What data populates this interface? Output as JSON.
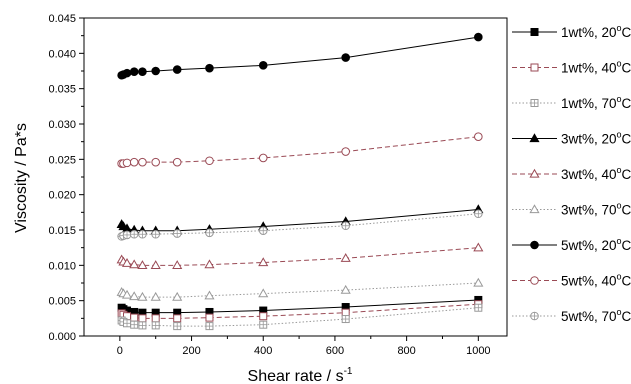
{
  "chart_data": {
    "type": "line",
    "xlabel": "Shear rate / s",
    "xlabel_sup": "-1",
    "ylabel": "Viscosity / Pa*s",
    "xlim": [
      -100,
      1080
    ],
    "ylim": [
      0,
      0.045
    ],
    "x_ticks": [
      0,
      200,
      400,
      600,
      800,
      1000
    ],
    "x_tick_labels": [
      "0",
      "200",
      "400",
      "600",
      "800",
      "1000"
    ],
    "y_ticks": [
      0,
      0.005,
      0.01,
      0.015,
      0.02,
      0.025,
      0.03,
      0.035,
      0.04,
      0.045
    ],
    "y_tick_labels": [
      "0.000",
      "0.005",
      "0.010",
      "0.015",
      "0.020",
      "0.025",
      "0.030",
      "0.035",
      "0.040",
      "0.045"
    ],
    "grid": false,
    "legend_position": "right",
    "x": [
      5,
      10,
      20,
      40,
      63,
      100,
      160,
      250,
      400,
      630,
      1000
    ],
    "series": [
      {
        "name": "1wt%, 20°C",
        "label_main": "1wt%, 20",
        "label_sup": "o",
        "label_end": "C",
        "color": "#000000",
        "dash": "solid",
        "marker": "square",
        "fill": "filled",
        "values": [
          0.004,
          0.0038,
          0.0036,
          0.0034,
          0.0033,
          0.0033,
          0.0033,
          0.0034,
          0.0036,
          0.0041,
          0.0051
        ]
      },
      {
        "name": "1wt%, 40°C",
        "label_main": "1wt%, 40",
        "label_sup": "o",
        "label_end": "C",
        "color": "#9a4a55",
        "dash": "dashed",
        "marker": "square",
        "fill": "open",
        "values": [
          0.0032,
          0.003,
          0.0028,
          0.0026,
          0.0025,
          0.0025,
          0.0025,
          0.0026,
          0.0028,
          0.0033,
          0.0045
        ]
      },
      {
        "name": "1wt%, 70°C",
        "label_main": "1wt%, 70",
        "label_sup": "o",
        "label_end": "C",
        "color": "#999999",
        "dash": "dotted",
        "marker": "square-cross",
        "fill": "open",
        "values": [
          0.0022,
          0.002,
          0.0018,
          0.0016,
          0.0015,
          0.0015,
          0.0014,
          0.0014,
          0.0016,
          0.0024,
          0.004
        ]
      },
      {
        "name": "3wt%, 20°C",
        "label_main": "3wt%, 20",
        "label_sup": "o",
        "label_end": "C",
        "color": "#000000",
        "dash": "solid",
        "marker": "triangle",
        "fill": "filled",
        "values": [
          0.0158,
          0.0155,
          0.0152,
          0.015,
          0.0149,
          0.0149,
          0.0149,
          0.0151,
          0.0155,
          0.0162,
          0.0179
        ]
      },
      {
        "name": "3wt%, 40°C",
        "label_main": "3wt%, 40",
        "label_sup": "o",
        "label_end": "C",
        "color": "#9a4a55",
        "dash": "dashed",
        "marker": "triangle",
        "fill": "open",
        "values": [
          0.0108,
          0.0105,
          0.0103,
          0.0101,
          0.01,
          0.01,
          0.01,
          0.0101,
          0.0104,
          0.011,
          0.0125
        ]
      },
      {
        "name": "3wt%, 70°C",
        "label_main": "3wt%, 70",
        "label_sup": "o",
        "label_end": "C",
        "color": "#999999",
        "dash": "dotted",
        "marker": "triangle",
        "fill": "open",
        "values": [
          0.0062,
          0.006,
          0.0058,
          0.0056,
          0.0055,
          0.0055,
          0.0055,
          0.0057,
          0.006,
          0.0065,
          0.0075
        ]
      },
      {
        "name": "5wt%, 20°C",
        "label_main": "5wt%, 20",
        "label_sup": "o",
        "label_end": "C",
        "color": "#000000",
        "dash": "solid",
        "marker": "circle",
        "fill": "filled",
        "values": [
          0.0369,
          0.037,
          0.0372,
          0.0374,
          0.0374,
          0.0375,
          0.0377,
          0.0379,
          0.0383,
          0.0394,
          0.0423
        ]
      },
      {
        "name": "5wt%, 40°C",
        "label_main": "5wt%, 40",
        "label_sup": "o",
        "label_end": "C",
        "color": "#9a4a55",
        "dash": "dashed",
        "marker": "circle",
        "fill": "open",
        "values": [
          0.0244,
          0.0244,
          0.0245,
          0.0246,
          0.0246,
          0.0246,
          0.0246,
          0.0248,
          0.0252,
          0.0261,
          0.0282
        ]
      },
      {
        "name": "5wt%, 70°C",
        "label_main": "5wt%, 70",
        "label_sup": "o",
        "label_end": "C",
        "color": "#999999",
        "dash": "dotted",
        "marker": "circle-cross",
        "fill": "open",
        "values": [
          0.0141,
          0.0142,
          0.0143,
          0.0144,
          0.0144,
          0.0144,
          0.0145,
          0.0146,
          0.0149,
          0.0156,
          0.0173
        ]
      }
    ]
  }
}
